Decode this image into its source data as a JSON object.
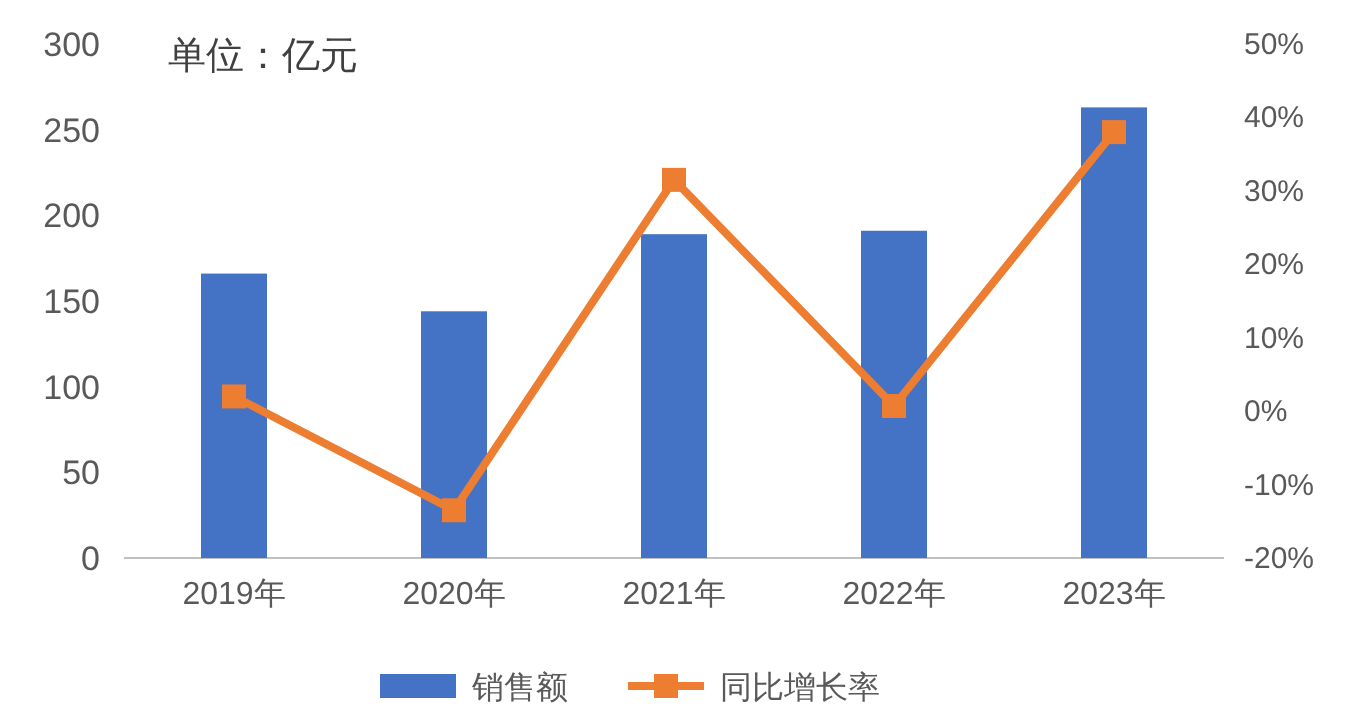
{
  "chart_data": {
    "type": "bar",
    "categories": [
      "2019年",
      "2020年",
      "2021年",
      "2022年",
      "2023年"
    ],
    "series": [
      {
        "name": "销售额",
        "color": "#4472c4",
        "values": [
          166,
          144,
          189,
          191,
          263
        ]
      },
      {
        "name": "同比增长率",
        "type": "line",
        "axis": "y2",
        "color": "#ed7d31",
        "marker": "square",
        "values": [
          2,
          -13.5,
          31.5,
          0.7,
          38
        ]
      }
    ],
    "ylim": [
      0,
      300
    ],
    "yticks": [
      0,
      50,
      100,
      150,
      200,
      250,
      300
    ],
    "y2lim": [
      -20,
      50
    ],
    "y2ticks": [
      {
        "value": -20,
        "label": "-20%"
      },
      {
        "value": -10,
        "label": "-10%"
      },
      {
        "value": 0,
        "label": "0%"
      },
      {
        "value": 10,
        "label": "10%"
      },
      {
        "value": 20,
        "label": "20%"
      },
      {
        "value": 30,
        "label": "30%"
      },
      {
        "value": 40,
        "label": "40%"
      },
      {
        "value": 50,
        "label": "50%"
      }
    ],
    "annotations": [
      "单位：亿元"
    ],
    "legend": "bottom",
    "grid": false
  }
}
